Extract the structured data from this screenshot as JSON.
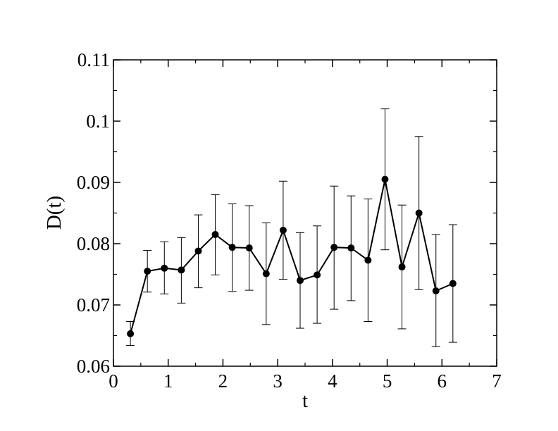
{
  "chart_data": {
    "type": "scatter",
    "title": "",
    "xlabel": "t",
    "ylabel": "D(t)",
    "xlim": [
      0,
      7
    ],
    "ylim": [
      0.06,
      0.11
    ],
    "x_ticks": [
      0,
      1,
      2,
      3,
      4,
      5,
      6,
      7
    ],
    "x_tick_labels": [
      "0",
      "1",
      "2",
      "3",
      "4",
      "5",
      "6",
      "7"
    ],
    "y_ticks": [
      0.06,
      0.07,
      0.08,
      0.09,
      0.1,
      0.11
    ],
    "y_tick_labels": [
      "0.06",
      "0.07",
      "0.08",
      "0.09",
      "0.1",
      "0.11"
    ],
    "grid": false,
    "legend": "none",
    "colors": {
      "series": "#000000",
      "axes": "#000000"
    },
    "series": [
      {
        "marker": "filled-circle",
        "line": "solid",
        "error_bars": true,
        "points": [
          {
            "x": 0.31,
            "y": 0.0653,
            "err_low": 0.0634,
            "err_high": 0.0673
          },
          {
            "x": 0.62,
            "y": 0.0755,
            "err_low": 0.0721,
            "err_high": 0.0789
          },
          {
            "x": 0.93,
            "y": 0.076,
            "err_low": 0.0718,
            "err_high": 0.0803
          },
          {
            "x": 1.24,
            "y": 0.0757,
            "err_low": 0.0703,
            "err_high": 0.081
          },
          {
            "x": 1.55,
            "y": 0.0788,
            "err_low": 0.0728,
            "err_high": 0.0847
          },
          {
            "x": 1.86,
            "y": 0.0815,
            "err_low": 0.0749,
            "err_high": 0.088
          },
          {
            "x": 2.17,
            "y": 0.0794,
            "err_low": 0.0722,
            "err_high": 0.0865
          },
          {
            "x": 2.48,
            "y": 0.0793,
            "err_low": 0.0724,
            "err_high": 0.0862
          },
          {
            "x": 2.79,
            "y": 0.0751,
            "err_low": 0.0668,
            "err_high": 0.0834
          },
          {
            "x": 3.1,
            "y": 0.0822,
            "err_low": 0.0742,
            "err_high": 0.0902
          },
          {
            "x": 3.41,
            "y": 0.074,
            "err_low": 0.0662,
            "err_high": 0.0818
          },
          {
            "x": 3.72,
            "y": 0.0749,
            "err_low": 0.067,
            "err_high": 0.0829
          },
          {
            "x": 4.03,
            "y": 0.0794,
            "err_low": 0.0693,
            "err_high": 0.0894
          },
          {
            "x": 4.34,
            "y": 0.0793,
            "err_low": 0.0707,
            "err_high": 0.0878
          },
          {
            "x": 4.65,
            "y": 0.0773,
            "err_low": 0.0673,
            "err_high": 0.0873
          },
          {
            "x": 4.96,
            "y": 0.0905,
            "err_low": 0.079,
            "err_high": 0.102
          },
          {
            "x": 5.27,
            "y": 0.0762,
            "err_low": 0.0661,
            "err_high": 0.0863
          },
          {
            "x": 5.58,
            "y": 0.085,
            "err_low": 0.0725,
            "err_high": 0.0975
          },
          {
            "x": 5.89,
            "y": 0.0723,
            "err_low": 0.0632,
            "err_high": 0.0815
          },
          {
            "x": 6.2,
            "y": 0.0735,
            "err_low": 0.0639,
            "err_high": 0.0831
          }
        ]
      }
    ]
  }
}
